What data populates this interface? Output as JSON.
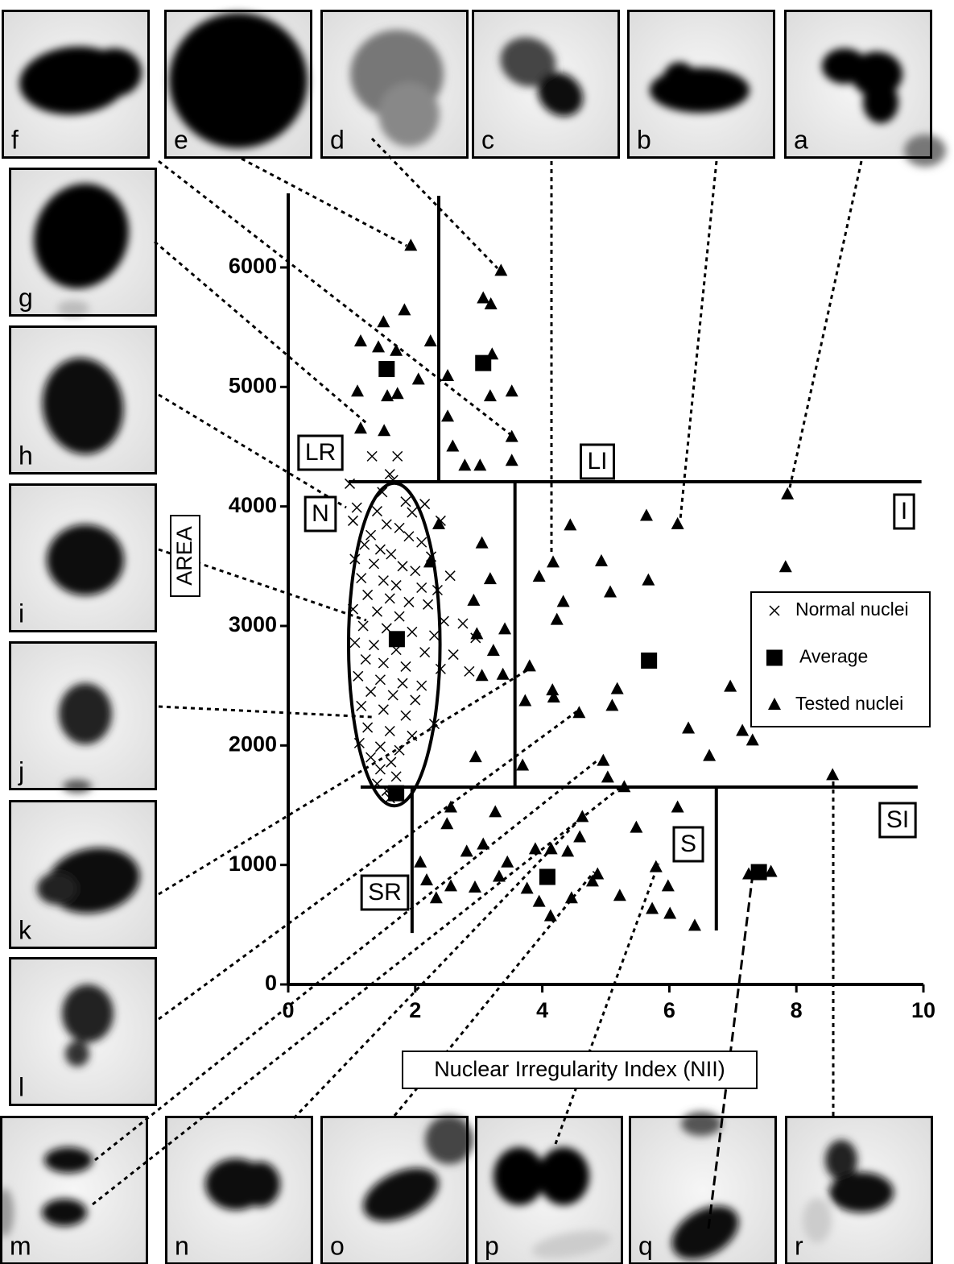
{
  "chart_data": {
    "type": "scatter",
    "x_label": "Nuclear Irregularity Index (NII)",
    "y_label": "AREA",
    "xlim": [
      0,
      10
    ],
    "xticks": [
      0,
      2,
      4,
      6,
      8,
      10
    ],
    "ylim": [
      0,
      6620
    ],
    "yticks": [
      0,
      1000,
      2000,
      3000,
      4000,
      5000,
      6000
    ],
    "series": [
      {
        "name": "Normal nuclei",
        "marker": "x",
        "color": "#000000",
        "x": [
          1.32,
          1.72,
          1.6,
          1.65,
          0.97,
          1.48,
          1.85,
          2.15,
          1.08,
          1.4,
          1.95,
          2.4,
          1.02,
          1.55,
          1.75,
          1.3,
          1.9,
          2.1,
          1.2,
          1.45,
          1.62,
          2.25,
          1.05,
          1.35,
          1.8,
          2.0,
          2.55,
          1.15,
          1.5,
          1.7,
          2.1,
          2.35,
          1.25,
          1.6,
          1.9,
          2.2,
          1.02,
          1.4,
          1.75,
          2.45,
          2.75,
          1.18,
          1.55,
          1.95,
          2.3,
          2.95,
          1.05,
          1.35,
          1.7,
          2.15,
          2.6,
          1.22,
          1.5,
          1.85,
          2.4,
          2.85,
          1.1,
          1.45,
          1.8,
          2.1,
          1.3,
          1.65,
          2.0,
          1.15,
          1.5,
          1.85,
          2.3,
          1.25,
          1.6,
          1.95,
          1.12,
          1.45,
          1.75,
          1.3,
          1.62,
          1.45,
          1.7,
          1.4,
          1.55,
          1.6
        ],
        "y": [
          4420,
          4420,
          4270,
          4220,
          4190,
          4120,
          4040,
          4020,
          3990,
          3960,
          3950,
          3880,
          3880,
          3850,
          3820,
          3760,
          3750,
          3700,
          3680,
          3640,
          3600,
          3580,
          3560,
          3520,
          3500,
          3460,
          3420,
          3400,
          3380,
          3340,
          3320,
          3300,
          3260,
          3230,
          3200,
          3180,
          3140,
          3120,
          3080,
          3040,
          3020,
          3000,
          2980,
          2950,
          2920,
          2900,
          2860,
          2840,
          2800,
          2780,
          2760,
          2720,
          2690,
          2660,
          2640,
          2620,
          2580,
          2550,
          2520,
          2500,
          2450,
          2420,
          2380,
          2330,
          2300,
          2250,
          2180,
          2150,
          2120,
          2080,
          2020,
          1990,
          1960,
          1900,
          1860,
          1800,
          1740,
          1680,
          1620,
          1560
        ]
      },
      {
        "name": "Average",
        "marker": "square",
        "color": "#000000",
        "x": [
          1.55,
          3.07,
          1.71,
          5.68,
          1.7,
          4.08,
          7.41
        ],
        "y": [
          5150,
          5200,
          2890,
          2710,
          1600,
          900,
          940
        ]
      },
      {
        "name": "Tested nuclei",
        "marker": "triangle",
        "color": "#000000",
        "x": [
          1.93,
          1.5,
          1.14,
          1.42,
          1.7,
          1.83,
          2.24,
          2.05,
          1.09,
          1.56,
          1.72,
          1.51,
          1.14,
          3.35,
          3.07,
          3.19,
          3.21,
          2.51,
          3.52,
          3.18,
          2.51,
          3.52,
          2.59,
          2.78,
          3.02,
          3.52,
          7.86,
          6.13,
          5.64,
          4.44,
          4.17,
          3.95,
          4.93,
          5.67,
          7.83,
          5.07,
          4.33,
          4.23,
          2.37,
          3.05,
          2.23,
          3.18,
          2.92,
          3.41,
          3.23,
          2.97,
          3.38,
          3.05,
          3.8,
          3.73,
          4.16,
          4.18,
          5.18,
          5.1,
          4.58,
          6.96,
          6.3,
          7.15,
          7.31,
          6.63,
          2.95,
          3.69,
          4.96,
          8.57,
          5.03,
          5.29,
          2.56,
          2.5,
          3.26,
          3.07,
          2.08,
          2.81,
          2.18,
          2.56,
          2.33,
          2.94,
          3.32,
          3.45,
          3.89,
          4.14,
          4.4,
          4.59,
          4.63,
          4.79,
          4.87,
          4.46,
          3.76,
          3.95,
          4.13,
          5.22,
          5.48,
          5.79,
          5.98,
          5.73,
          6.01,
          6.4,
          6.13,
          7.25,
          7.6
        ],
        "y": [
          6180,
          5540,
          5380,
          5330,
          5300,
          5640,
          5380,
          5060,
          4960,
          4920,
          4940,
          4630,
          4650,
          5970,
          5740,
          5690,
          5270,
          5090,
          4960,
          4920,
          4750,
          4580,
          4500,
          4340,
          4340,
          4380,
          4100,
          3850,
          3920,
          3840,
          3530,
          3410,
          3540,
          3380,
          3490,
          3280,
          3200,
          3050,
          3850,
          3690,
          3530,
          3390,
          3210,
          2970,
          2790,
          2930,
          2590,
          2580,
          2660,
          2370,
          2460,
          2400,
          2470,
          2330,
          2270,
          2490,
          2140,
          2120,
          2040,
          1910,
          1900,
          1830,
          1870,
          1750,
          1730,
          1650,
          1480,
          1340,
          1440,
          1170,
          1020,
          1110,
          870,
          820,
          720,
          810,
          900,
          1020,
          1130,
          1130,
          1110,
          1230,
          1400,
          860,
          920,
          720,
          800,
          690,
          570,
          740,
          1310,
          980,
          820,
          630,
          590,
          490,
          1480,
          920,
          940
        ]
      }
    ],
    "dividers": [
      {
        "x1": 2.37,
        "y1": 6600,
        "x2": 2.37,
        "y2": 4207
      },
      {
        "x1": 0.95,
        "y1": 4207,
        "x2": 9.97,
        "y2": 4207
      },
      {
        "x1": 3.57,
        "y1": 4207,
        "x2": 3.57,
        "y2": 1652
      },
      {
        "x1": 1.14,
        "y1": 1652,
        "x2": 9.91,
        "y2": 1652
      },
      {
        "x1": 1.95,
        "y1": 1652,
        "x2": 1.95,
        "y2": 431
      },
      {
        "x1": 6.74,
        "y1": 1652,
        "x2": 6.74,
        "y2": 452
      }
    ],
    "ellipse": {
      "cx": 1.67,
      "cy": 2845,
      "rx": 0.72,
      "ry": 1350
    },
    "regions": [
      "LR",
      "LI",
      "N",
      "I",
      "S",
      "SI",
      "SR"
    ],
    "panels": [
      "f",
      "e",
      "d",
      "c",
      "b",
      "a",
      "g",
      "h",
      "i",
      "j",
      "k",
      "l",
      "m",
      "n",
      "o",
      "p",
      "q",
      "r"
    ]
  }
}
